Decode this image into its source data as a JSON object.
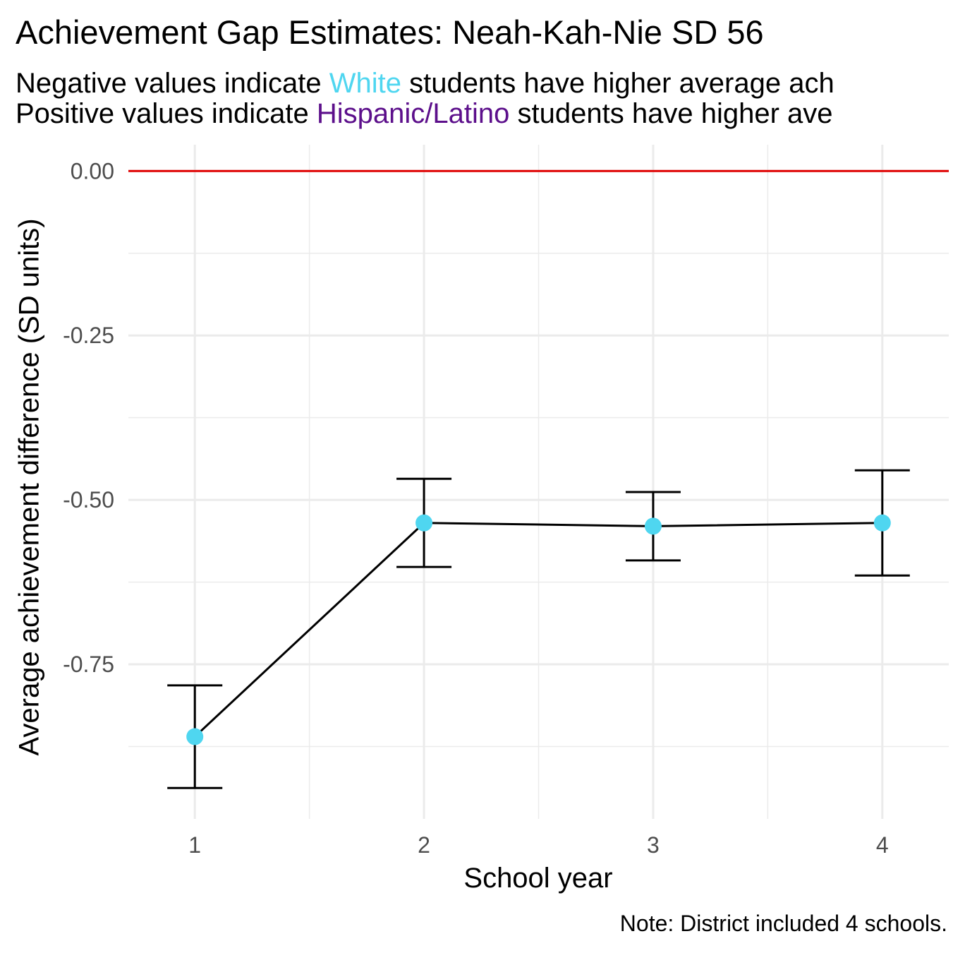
{
  "chart_data": {
    "type": "line",
    "title": "Achievement Gap Estimates: Neah-Kah-Nie SD 56",
    "subtitle": {
      "line1": {
        "before": "Negative values indicate ",
        "highlight": "White",
        "after": " students have higher average ach"
      },
      "line2": {
        "before": "Positive values indicate ",
        "highlight": "Hispanic/Latino",
        "after": " students have higher ave"
      }
    },
    "xlabel": "School year",
    "ylabel": "Average achievement difference (SD units)",
    "caption": "Note: District included 4 schools.",
    "x": [
      1,
      2,
      3,
      4
    ],
    "x_ticks": [
      "1",
      "2",
      "3",
      "4"
    ],
    "y_ticks": [
      "0.00",
      "-0.25",
      "-0.50",
      "-0.75"
    ],
    "y_tick_values": [
      0,
      -0.25,
      -0.5,
      -0.75
    ],
    "xlim": [
      0.71,
      4.29
    ],
    "ylim": [
      -0.985,
      0.04
    ],
    "reference_line": 0,
    "series": [
      {
        "values": [
          -0.86,
          -0.535,
          -0.54,
          -0.535
        ],
        "lower": [
          -0.938,
          -0.602,
          -0.592,
          -0.615
        ],
        "upper": [
          -0.782,
          -0.468,
          -0.488,
          -0.455
        ]
      }
    ],
    "colors": {
      "point": "#4fd6f0",
      "line": "#000000",
      "reference": "#e00000",
      "grid": "#ebebeb",
      "white_highlight": "#4fd6f0",
      "hispanic_highlight": "#5c0f8b"
    },
    "grid": true
  }
}
